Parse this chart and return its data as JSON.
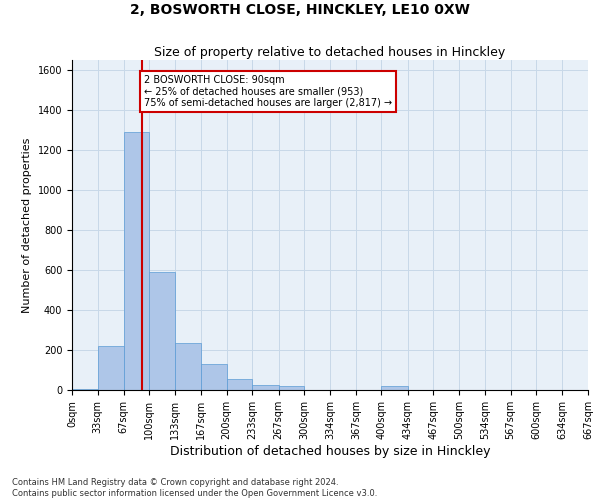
{
  "title": "2, BOSWORTH CLOSE, HINCKLEY, LE10 0XW",
  "subtitle": "Size of property relative to detached houses in Hinckley",
  "xlabel": "Distribution of detached houses by size in Hinckley",
  "ylabel": "Number of detached properties",
  "footnote1": "Contains HM Land Registry data © Crown copyright and database right 2024.",
  "footnote2": "Contains public sector information licensed under the Open Government Licence v3.0.",
  "annotation_line1": "2 BOSWORTH CLOSE: 90sqm",
  "annotation_line2": "← 25% of detached houses are smaller (953)",
  "annotation_line3": "75% of semi-detached houses are larger (2,817) →",
  "property_size": 90,
  "bin_edges": [
    0,
    33,
    67,
    100,
    133,
    167,
    200,
    233,
    267,
    300,
    334,
    367,
    400,
    434,
    467,
    500,
    534,
    567,
    600,
    634,
    667
  ],
  "bar_heights": [
    5,
    220,
    1290,
    590,
    235,
    130,
    55,
    25,
    20,
    0,
    0,
    0,
    20,
    0,
    0,
    0,
    0,
    0,
    0,
    0
  ],
  "bar_color": "#aec6e8",
  "bar_edgecolor": "#5b9bd5",
  "vline_x": 90,
  "vline_color": "#cc0000",
  "ylim": [
    0,
    1650
  ],
  "yticks": [
    0,
    200,
    400,
    600,
    800,
    1000,
    1200,
    1400,
    1600
  ],
  "grid_color": "#c8d8e8",
  "bg_color": "#e8f0f8",
  "annotation_box_color": "#cc0000",
  "title_fontsize": 10,
  "subtitle_fontsize": 9,
  "xlabel_fontsize": 9,
  "ylabel_fontsize": 8,
  "tick_fontsize": 7,
  "footnote_fontsize": 6,
  "annotation_fontsize": 7
}
